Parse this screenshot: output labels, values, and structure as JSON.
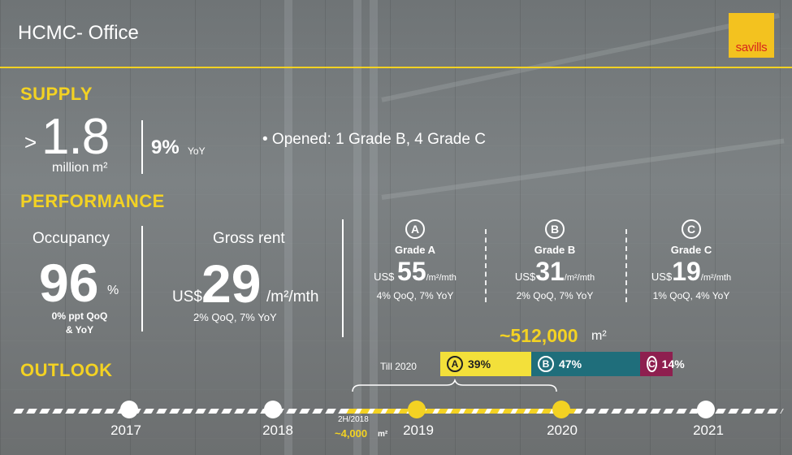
{
  "header": {
    "title": "HCMC- Office",
    "logo_text": "savills"
  },
  "supply": {
    "section_label": "SUPPLY",
    "prefix": ">",
    "value": "1.8",
    "unit": "million m²",
    "yoy_pct": "9%",
    "yoy_label": "YoY",
    "bullet": "•  Opened: 1 Grade B, 4 Grade C"
  },
  "performance": {
    "section_label": "PERFORMANCE",
    "occupancy": {
      "label": "Occupancy",
      "value": "96",
      "pct": "%",
      "change_line1": "0% ppt QoQ",
      "change_line2": "& YoY"
    },
    "gross_rent": {
      "label": "Gross rent",
      "currency": "US$",
      "value": "29",
      "unit": "/m²/mth",
      "change": "2% QoQ, 7% YoY"
    },
    "grades": [
      {
        "badge": "A",
        "name": "Grade A",
        "currency": "US$ ",
        "value": "55",
        "unit": "/m²/mth",
        "change": "4% QoQ, 7% YoY"
      },
      {
        "badge": "B",
        "name": "Grade B",
        "currency": "US$",
        "value": "31",
        "unit": "/m²/mth",
        "change": "2% QoQ, 7% YoY"
      },
      {
        "badge": "C",
        "name": "Grade C",
        "currency": "US$",
        "value": "19",
        "unit": "/m²/mth",
        "change": "1% QoQ, 4% YoY"
      }
    ]
  },
  "outlook": {
    "section_label": "OUTLOOK",
    "total": "~512,000",
    "total_unit": "m²",
    "till_label": "Till 2020",
    "segments": [
      {
        "badge": "A",
        "pct": "39%",
        "share": 39,
        "color": "#f3e03a",
        "text_color": "#222222"
      },
      {
        "badge": "B",
        "pct": "47%",
        "share": 47,
        "color": "#1f6e7b",
        "text_color": "#ffffff"
      },
      {
        "badge": "C",
        "pct": "14%",
        "share": 14,
        "color": "#8e1f4f",
        "text_color": "#ffffff"
      }
    ]
  },
  "timeline": {
    "years": [
      "2017",
      "2018",
      "2019",
      "2020",
      "2021"
    ],
    "h2_label": "2H/2018",
    "h2_value": "~4,000",
    "h2_unit": "m²"
  },
  "colors": {
    "accent": "#f3d223",
    "logo_bg": "#f3c21f",
    "logo_text": "#d8261c"
  }
}
